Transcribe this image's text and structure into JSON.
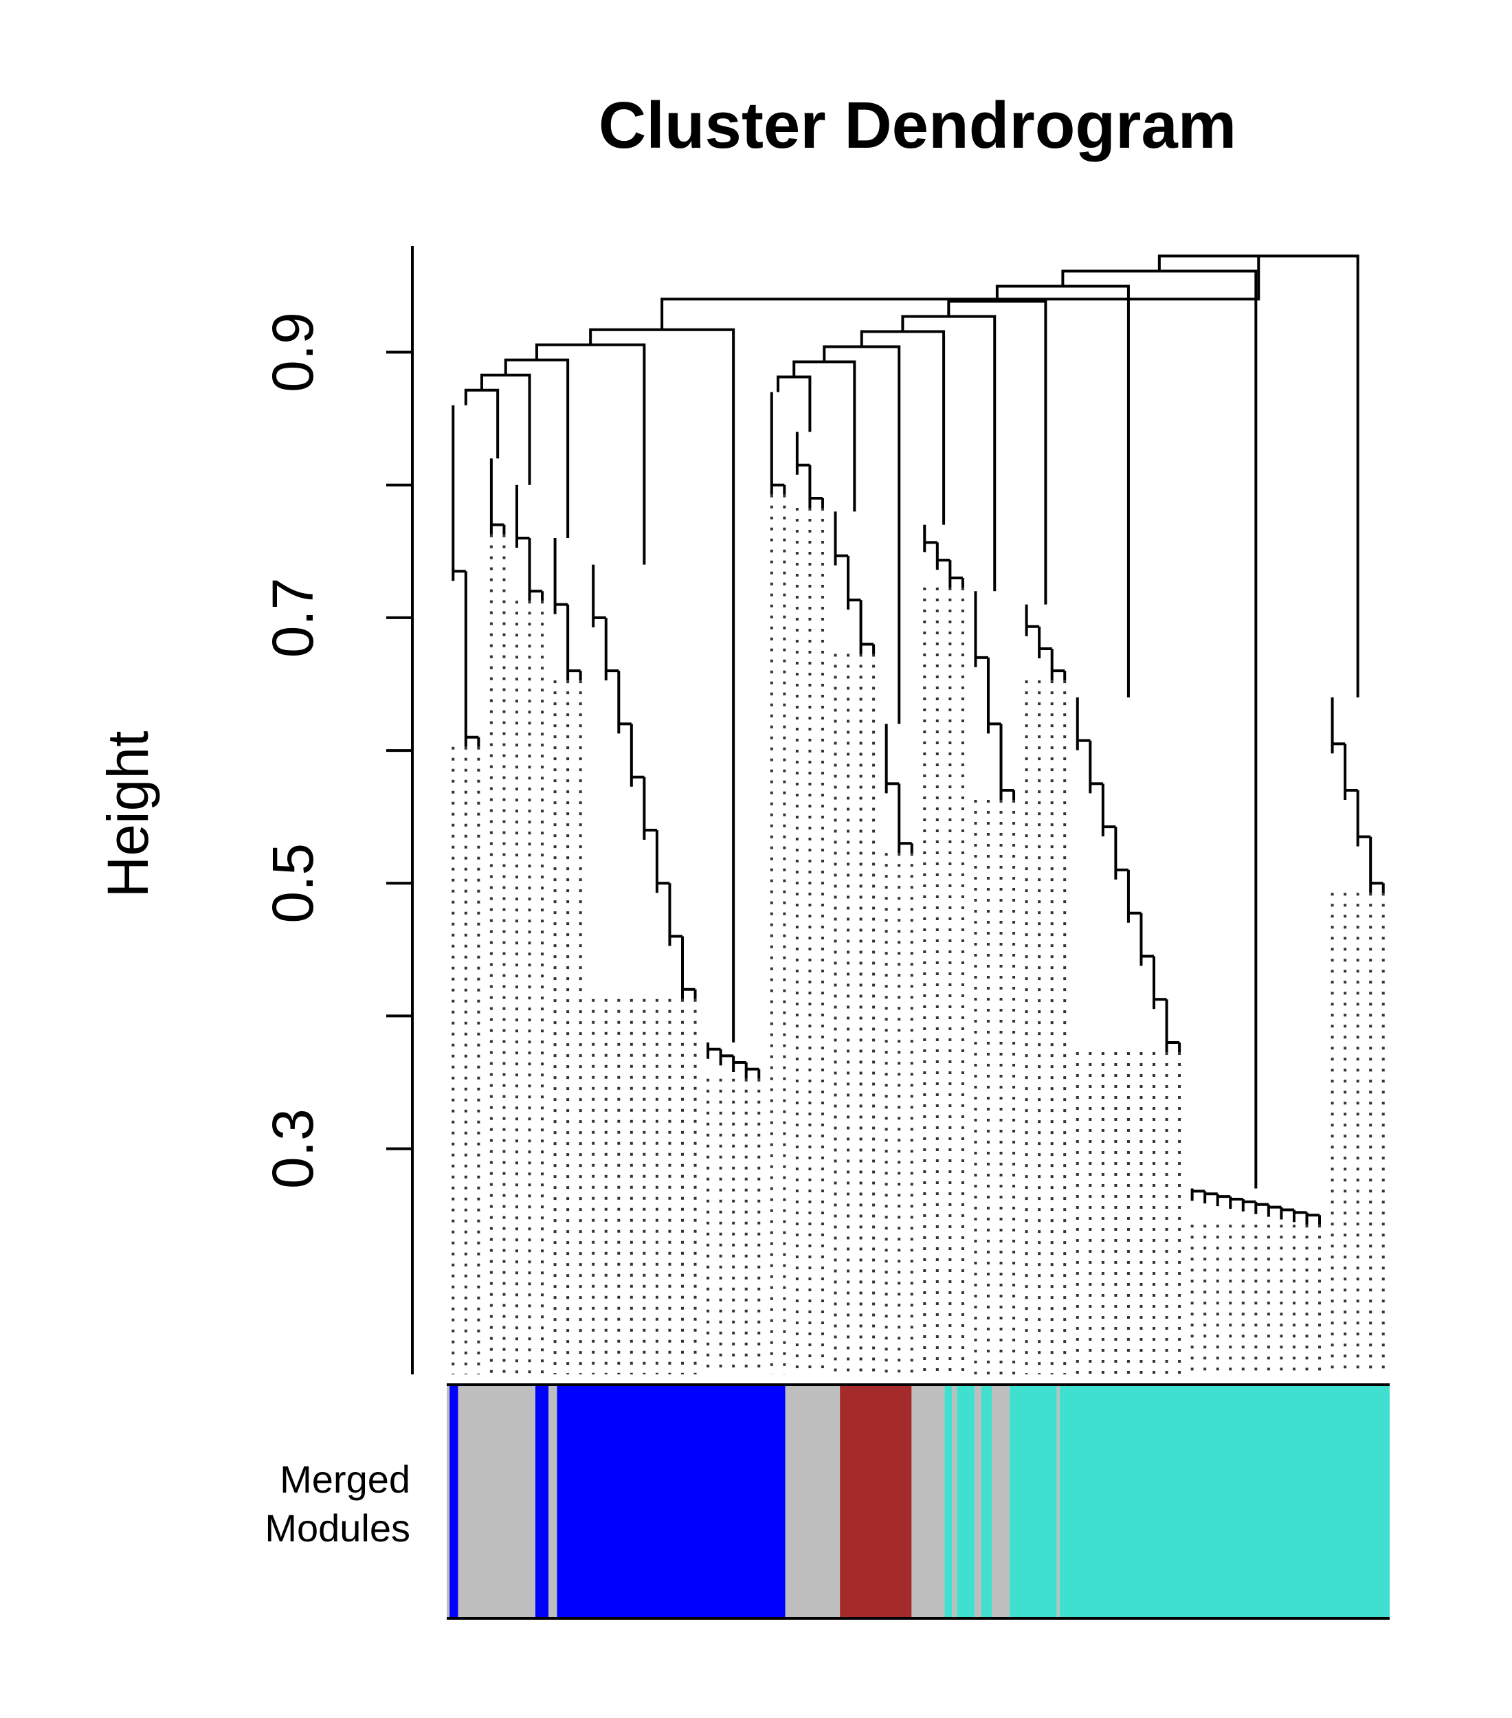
{
  "chart_data": {
    "type": "dendrogram",
    "title": "Cluster Dendrogram",
    "ylabel": "Height",
    "ylim": [
      0.13,
      0.98
    ],
    "yticks": [
      0.3,
      0.4,
      0.5,
      0.6,
      0.7,
      0.8,
      0.9
    ],
    "ytick_labels": [
      "0.3",
      "",
      "0.5",
      "",
      "0.7",
      "",
      "0.9"
    ],
    "root_height": 0.94,
    "clusters": [
      {
        "id": "left-1",
        "leaves": 3,
        "top": 0.86,
        "bottom": 0.61
      },
      {
        "id": "left-2",
        "leaves": 2,
        "top": 0.82,
        "bottom": 0.77
      },
      {
        "id": "left-3",
        "leaves": 3,
        "top": 0.8,
        "bottom": 0.72
      },
      {
        "id": "left-4",
        "leaves": 3,
        "top": 0.76,
        "bottom": 0.66
      },
      {
        "id": "left-5",
        "leaves": 9,
        "top": 0.74,
        "bottom": 0.42
      },
      {
        "id": "left-6",
        "leaves": 5,
        "top": 0.38,
        "bottom": 0.36
      },
      {
        "id": "right-1",
        "leaves": 2,
        "top": 0.87,
        "bottom": 0.8
      },
      {
        "id": "right-2",
        "leaves": 3,
        "top": 0.84,
        "bottom": 0.79
      },
      {
        "id": "right-3",
        "leaves": 4,
        "top": 0.78,
        "bottom": 0.68
      },
      {
        "id": "right-4",
        "leaves": 3,
        "top": 0.62,
        "bottom": 0.53
      },
      {
        "id": "right-5",
        "leaves": 4,
        "top": 0.77,
        "bottom": 0.73
      },
      {
        "id": "right-6",
        "leaves": 4,
        "top": 0.72,
        "bottom": 0.57
      },
      {
        "id": "right-7",
        "leaves": 4,
        "top": 0.71,
        "bottom": 0.66
      },
      {
        "id": "right-8",
        "leaves": 9,
        "top": 0.64,
        "bottom": 0.38
      },
      {
        "id": "right-9",
        "leaves": 11,
        "top": 0.27,
        "bottom": 0.25
      },
      {
        "id": "right-10",
        "leaves": 5,
        "top": 0.64,
        "bottom": 0.5
      }
    ],
    "color_bar": {
      "label": [
        "Merged",
        "Modules"
      ],
      "segments": [
        {
          "color": "#bebebe",
          "from": 0.0,
          "to": 0.003
        },
        {
          "color": "#0000ff",
          "from": 0.003,
          "to": 0.012
        },
        {
          "color": "#bebebe",
          "from": 0.012,
          "to": 0.094
        },
        {
          "color": "#0000ff",
          "from": 0.094,
          "to": 0.108
        },
        {
          "color": "#bebebe",
          "from": 0.108,
          "to": 0.117
        },
        {
          "color": "#0000ff",
          "from": 0.117,
          "to": 0.359
        },
        {
          "color": "#bebebe",
          "from": 0.359,
          "to": 0.417
        },
        {
          "color": "#a52a2a",
          "from": 0.417,
          "to": 0.493
        },
        {
          "color": "#bebebe",
          "from": 0.493,
          "to": 0.528
        },
        {
          "color": "#40e0d0",
          "from": 0.528,
          "to": 0.536
        },
        {
          "color": "#bebebe",
          "from": 0.536,
          "to": 0.541
        },
        {
          "color": "#40e0d0",
          "from": 0.541,
          "to": 0.56
        },
        {
          "color": "#bebebe",
          "from": 0.56,
          "to": 0.567
        },
        {
          "color": "#40e0d0",
          "from": 0.567,
          "to": 0.578
        },
        {
          "color": "#bebebe",
          "from": 0.578,
          "to": 0.597
        },
        {
          "color": "#40e0d0",
          "from": 0.597,
          "to": 0.647
        },
        {
          "color": "#bebebe",
          "from": 0.647,
          "to": 0.65
        },
        {
          "color": "#40e0d0",
          "from": 0.65,
          "to": 1.0
        }
      ]
    }
  }
}
